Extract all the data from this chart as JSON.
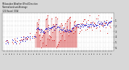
{
  "title": "Milwaukee Weather Wind Direction\nNormalized and Average\n(24 Hours) (Old)",
  "bg_color": "#d8d8d8",
  "plot_bg_color": "#ffffff",
  "ylim": [
    -0.5,
    6.5
  ],
  "ytick_values": [
    0,
    1,
    2,
    3,
    4,
    5
  ],
  "ytick_labels": [
    "6",
    "5",
    "4",
    "3",
    "2",
    "1"
  ],
  "grid_color": "#bbbbbb",
  "dot_color_red": "#cc0000",
  "dot_color_blue": "#0000cc",
  "n_points": 200,
  "seed": 7
}
